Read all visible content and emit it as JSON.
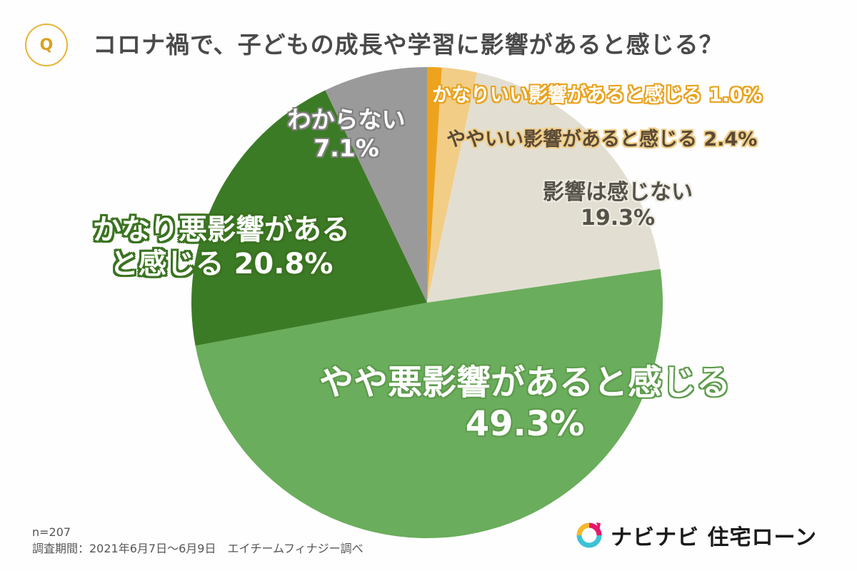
{
  "header": {
    "q_badge": "Q",
    "title": "コロナ禍で、子どもの成長や学習に影響があると感じる？"
  },
  "labels": {
    "great_good": "かなりいい影響があると感じる 1.0%",
    "some_good": "ややいい影響があると感じる 2.4%",
    "no_effect_line1": "影響は感じない",
    "no_effect_line2": "19.3%",
    "some_bad_line1": "やや悪影響があると感じる",
    "some_bad_line2": "49.3%",
    "very_bad_line1": "かなり悪影響がある",
    "very_bad_line2": "と感じる 20.8%",
    "unknown_line1": "わからない",
    "unknown_line2": "7.1%"
  },
  "footer": {
    "sample": "n=207",
    "period": "調査期間：2021年6月7日～6月9日　エイチームフィナジー調べ"
  },
  "logo": {
    "icon": "navinavi-ring-icon",
    "text": "ナビナビ 住宅ローン",
    "colors": [
      "#e5186c",
      "#f5b82e",
      "#3cc3d4"
    ]
  },
  "chart_data": {
    "type": "pie",
    "title": "コロナ禍で、子どもの成長や学習に影響があると感じる？",
    "start_angle": "12 o'clock, clockwise",
    "categories": [
      "かなりいい影響があると感じる",
      "ややいい影響があると感じる",
      "影響は感じない",
      "やや悪影響があると感じる",
      "かなり悪影響があると感じる",
      "わからない"
    ],
    "values": [
      1.0,
      2.4,
      19.3,
      49.3,
      20.8,
      7.1
    ],
    "unit": "%",
    "colors": [
      "#eda31d",
      "#f2cd86",
      "#e2dfd2",
      "#6aad5c",
      "#3c7b25",
      "#9a9a9a"
    ],
    "n": 207,
    "legend": "none (inline labels)"
  }
}
